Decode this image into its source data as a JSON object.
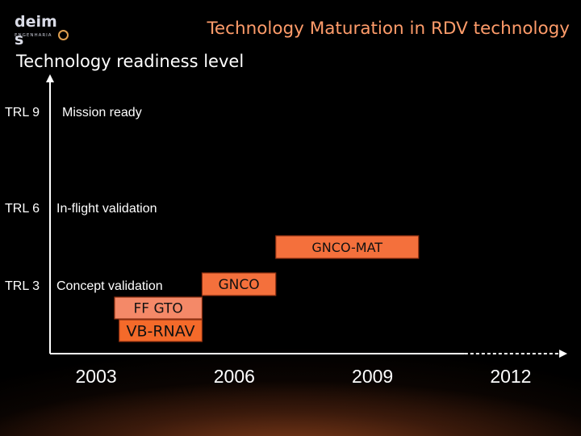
{
  "header": {
    "logo_text": "deimos",
    "logo_subtext": "ENGENHARIA",
    "title": "Technology Maturation in RDV technology"
  },
  "chart_data": {
    "type": "bar",
    "orientation": "horizontal-timeline",
    "ylabel": "Technology readiness level",
    "levels": [
      {
        "id": "TRL 9",
        "value": 9,
        "description": "Mission ready"
      },
      {
        "id": "TRL 6",
        "value": 6,
        "description": "In-flight validation"
      },
      {
        "id": "TRL 3",
        "value": 3,
        "description": "Concept validation"
      }
    ],
    "x_ticks": [
      "2003",
      "2006",
      "2009",
      "2012"
    ],
    "xlim": [
      2002,
      2013
    ],
    "ylim": [
      0,
      10
    ],
    "axis_extension_dashed_from": 2011,
    "bars": [
      {
        "name": "GNCO-MAT",
        "x_start": 2006.9,
        "x_end": 2010.0,
        "trl": 4.7,
        "color": "#f4703c"
      },
      {
        "name": "GNCO",
        "x_start": 2005.3,
        "x_end": 2006.9,
        "trl": 3.0,
        "color": "#f4703c"
      },
      {
        "name": "FF GTO",
        "x_start": 2003.4,
        "x_end": 2005.3,
        "trl": 2.3,
        "color": "#f48968"
      },
      {
        "name": "VB-RNAV",
        "x_start": 2003.5,
        "x_end": 2005.3,
        "trl": 1.6,
        "color": "#f46a2a"
      }
    ],
    "grid": false,
    "legend": "none"
  },
  "colors": {
    "title": "#ff9c6a",
    "axis": "#ffffff",
    "bar_border": "#8a2e10"
  }
}
